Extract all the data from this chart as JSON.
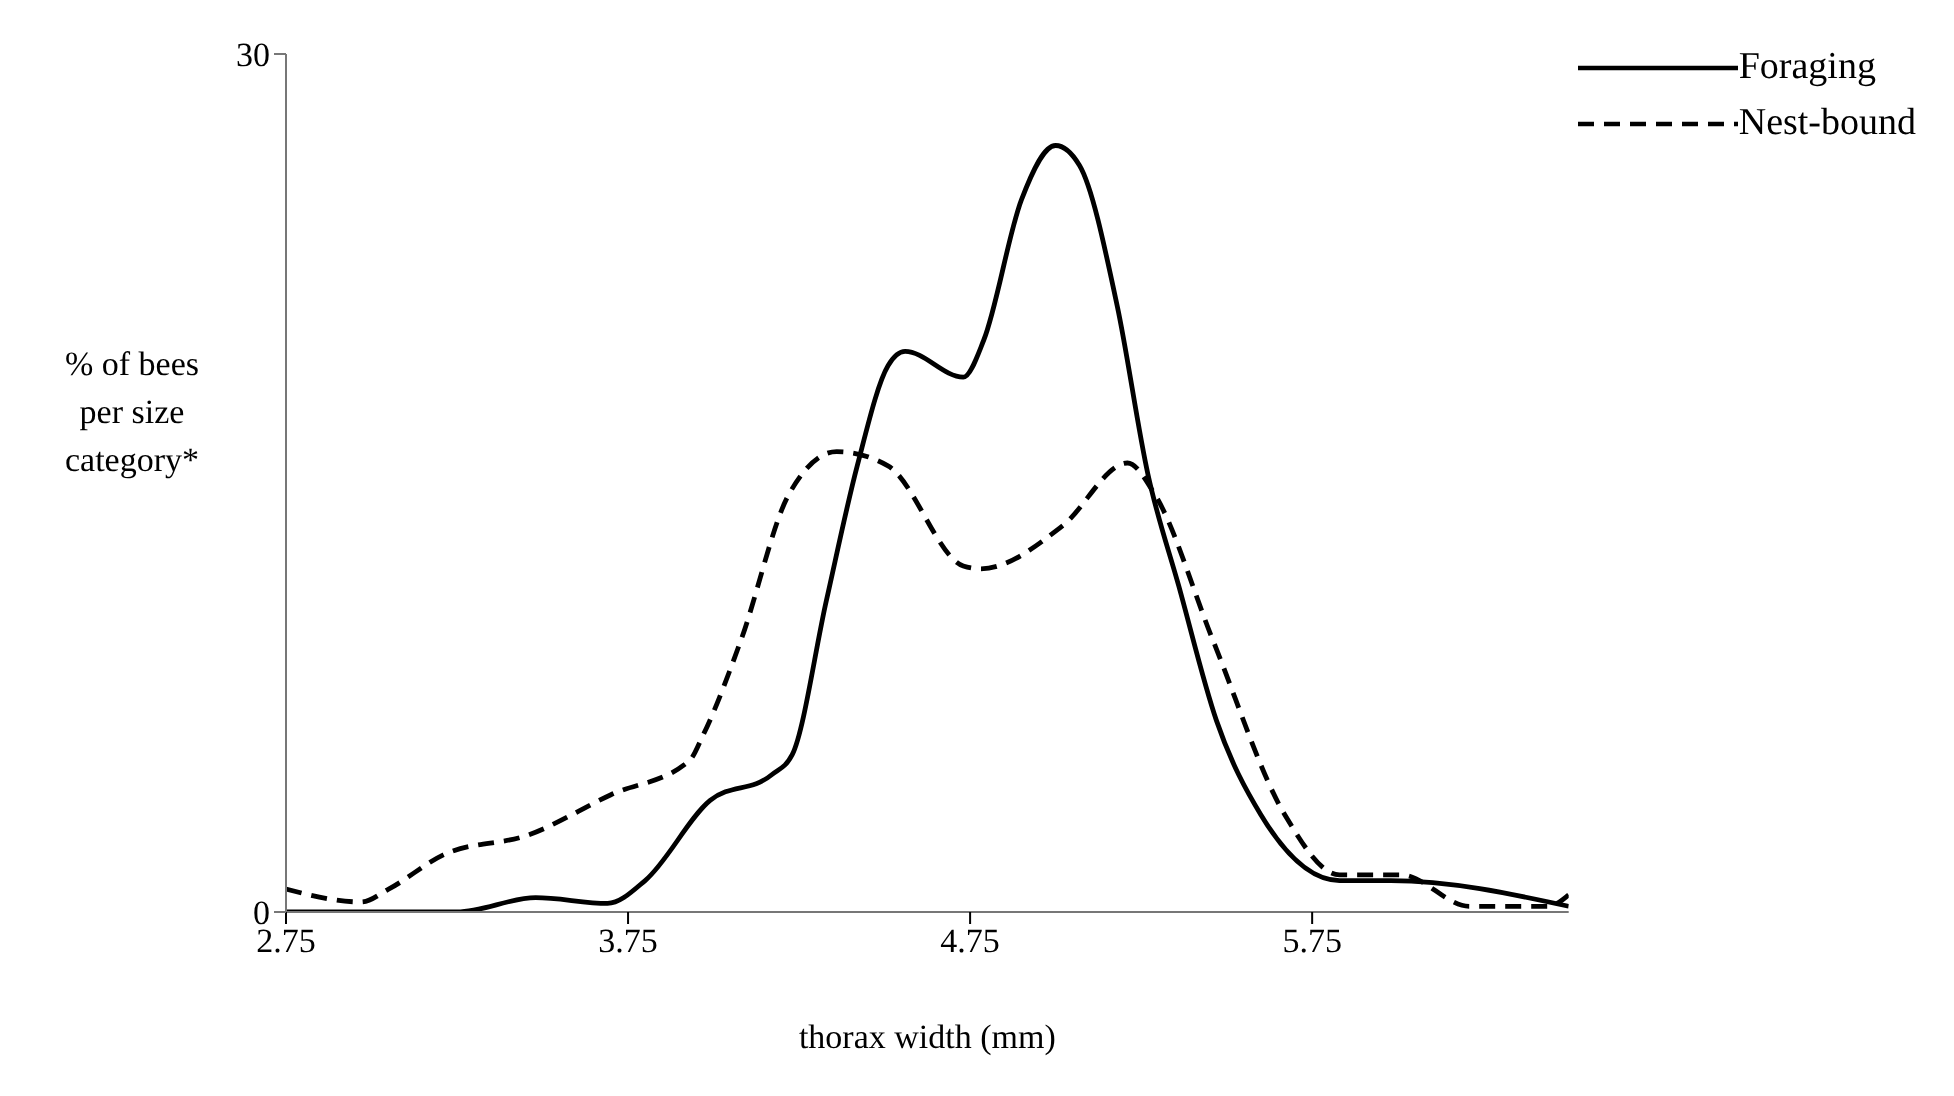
{
  "chart_data": {
    "type": "line",
    "xlabel": "thorax width (mm)",
    "ylabel": "% of bees per size category*",
    "xlim": [
      2.75,
      6.5
    ],
    "xticks": [
      2.75,
      3.75,
      4.75,
      5.75
    ],
    "ylim": [
      0,
      30
    ],
    "yticks": [
      0,
      30
    ],
    "grid": false,
    "legend": "top right",
    "marker": "none",
    "series": [
      {
        "name": "Foraging",
        "color": "#000000",
        "line_style": "solid",
        "x": [
          2.75,
          3.25,
          3.48,
          3.69,
          3.8,
          3.99,
          4.17,
          4.23,
          4.33,
          4.42,
          4.51,
          4.56,
          4.73,
          4.79,
          4.9,
          5.0,
          5.07,
          5.18,
          5.27,
          5.36,
          5.47,
          5.6,
          5.83,
          5.98,
          6.5
        ],
        "values": [
          0,
          0,
          0.5,
          0.3,
          1.1,
          3.9,
          4.8,
          5.5,
          10.9,
          15.6,
          19.1,
          19.6,
          18.7,
          20.0,
          24.9,
          26.8,
          26.1,
          21.2,
          15.3,
          11.4,
          6.7,
          3.4,
          1.1,
          1.1,
          0.2
        ]
      },
      {
        "name": "Nest-bound",
        "color": "#000000",
        "line_style": "dashed",
        "x": [
          2.75,
          2.97,
          3.05,
          3.21,
          3.46,
          3.7,
          3.93,
          3.97,
          4.08,
          4.22,
          4.36,
          4.51,
          4.73,
          4.78,
          5.02,
          5.21,
          5.29,
          5.46,
          5.67,
          5.83,
          6.01,
          6.21,
          6.44,
          6.5
        ],
        "values": [
          0.8,
          0.35,
          0.8,
          2.0,
          2.7,
          4.1,
          5.3,
          6.2,
          9.5,
          14.6,
          16.1,
          15.6,
          12.1,
          12.0,
          13.5,
          15.7,
          14.6,
          9.5,
          3.4,
          1.3,
          1.3,
          0.2,
          0.2,
          0.6
        ]
      }
    ]
  }
}
